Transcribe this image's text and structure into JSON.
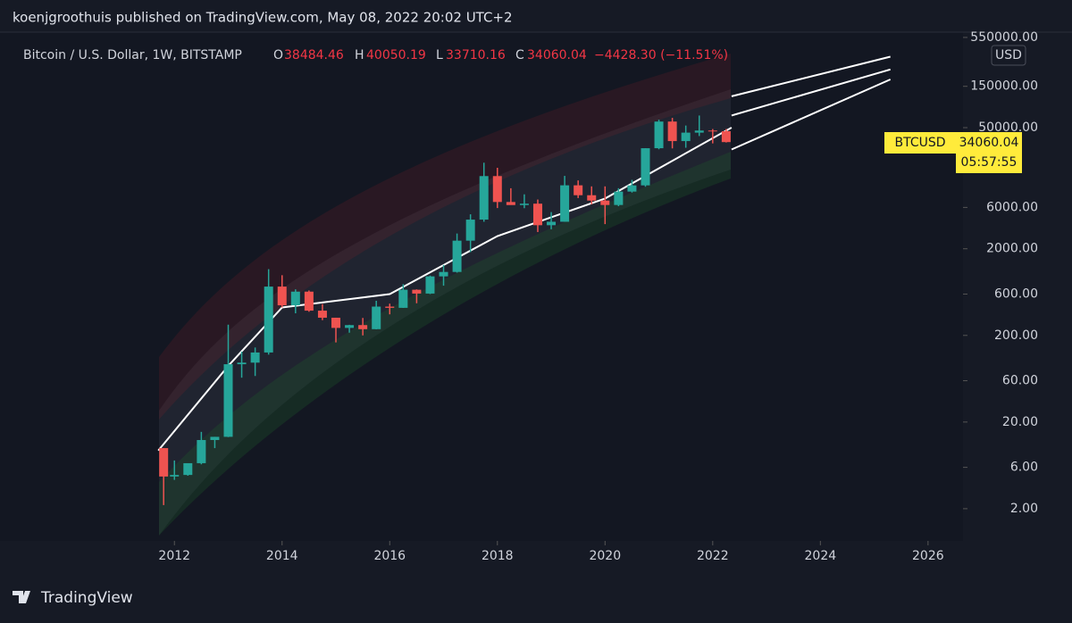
{
  "header": {
    "publisher": "koenjgroothuis published on TradingView.com, May 08, 2022 20:02 UTC+2"
  },
  "chart_data": {
    "type": "candlestick",
    "title": "Bitcoin / U.S. Dollar, 1W, BITSTAMP",
    "legend": {
      "open_label": "O",
      "open": 38484.46,
      "high_label": "H",
      "high": 40050.19,
      "low_label": "L",
      "low": 33710.16,
      "close_label": "C",
      "close": 34060.04,
      "change": "−4428.30 (−11.51%)"
    },
    "price_tag": {
      "symbol": "BTCUSD",
      "price": 34060.04,
      "countdown": "05:57:55"
    },
    "y_unit": "USD",
    "log_scale": true,
    "up_color": "#26a69a",
    "down_color": "#ef5350",
    "xlim": [
      2008.76,
      2026.6
    ],
    "xticks": [
      2012,
      2014,
      2016,
      2018,
      2020,
      2022,
      2024,
      2026
    ],
    "ylim": [
      0.87,
      730000
    ],
    "yticks": [
      {
        "value": 2,
        "label": "2.00"
      },
      {
        "value": 6,
        "label": "6.00"
      },
      {
        "value": 20,
        "label": "20.00"
      },
      {
        "value": 60,
        "label": "60.00"
      },
      {
        "value": 200,
        "label": "200.00"
      },
      {
        "value": 600,
        "label": "600.00"
      },
      {
        "value": 2000,
        "label": "2000.00"
      },
      {
        "value": 6000,
        "label": "6000.00"
      },
      {
        "value": 50000,
        "label": "50000.00"
      },
      {
        "value": 150000,
        "label": "150000.00"
      },
      {
        "value": 550000,
        "label": "550000.00"
      }
    ],
    "x": [
      2011.8,
      2012.0,
      2012.25,
      2012.5,
      2012.75,
      2013.0,
      2013.25,
      2013.5,
      2013.75,
      2014.0,
      2014.25,
      2014.5,
      2014.75,
      2015.0,
      2015.25,
      2015.5,
      2015.75,
      2016.0,
      2016.25,
      2016.5,
      2016.75,
      2017.0,
      2017.25,
      2017.5,
      2017.75,
      2018.0,
      2018.25,
      2018.5,
      2018.75,
      2019.0,
      2019.25,
      2019.5,
      2019.75,
      2020.0,
      2020.25,
      2020.5,
      2020.75,
      2021.0,
      2021.25,
      2021.5,
      2021.75,
      2022.0,
      2022.25
    ],
    "open": [
      10,
      4.7,
      4.9,
      6.7,
      12.4,
      13.5,
      93,
      97,
      127,
      732,
      445,
      640,
      386,
      320,
      244,
      263,
      236,
      430,
      416,
      673,
      608,
      960,
      1080,
      2480,
      4340,
      13800,
      6930,
      6390,
      6630,
      3740,
      4100,
      10800,
      8300,
      7200,
      6400,
      9140,
      10780,
      28950,
      58800,
      35000,
      43800,
      46300,
      45500
    ],
    "high": [
      10,
      7.2,
      6.6,
      15.4,
      13.5,
      266,
      130,
      145,
      1163,
      990,
      680,
      660,
      460,
      320,
      265,
      318,
      502,
      465,
      780,
      680,
      980,
      1300,
      3000,
      5000,
      19700,
      17200,
      9990,
      8500,
      7400,
      5300,
      13880,
      12300,
      10500,
      10500,
      10000,
      12480,
      29000,
      61800,
      64900,
      52900,
      69000,
      48200,
      48200
    ],
    "low": [
      2.2,
      4.3,
      4.8,
      6.5,
      10,
      13.4,
      65,
      68,
      120,
      420,
      360,
      375,
      300,
      166,
      215,
      200,
      235,
      350,
      415,
      470,
      600,
      750,
      1060,
      1830,
      4100,
      5900,
      6430,
      5880,
      3120,
      3360,
      4100,
      7700,
      6500,
      3850,
      6200,
      8900,
      10400,
      28150,
      28800,
      29300,
      40000,
      32900,
      33700
    ],
    "close": [
      4.7,
      4.9,
      6.7,
      12.4,
      13.5,
      93,
      97,
      127,
      732,
      445,
      640,
      386,
      320,
      244,
      263,
      236,
      430,
      416,
      673,
      608,
      960,
      1080,
      2480,
      4340,
      13800,
      6930,
      6390,
      6630,
      3740,
      4100,
      10800,
      8300,
      7200,
      6400,
      9140,
      10780,
      28950,
      58800,
      35000,
      43800,
      46300,
      45500,
      34060
    ],
    "lines": [
      {
        "color": "#ffffff",
        "x": [
          2011.7,
          2013,
          2014,
          2016,
          2018,
          2020,
          2022.35
        ],
        "values": [
          9.4,
          89,
          420,
          600,
          2800,
          7600,
          50000
        ]
      },
      {
        "color": "#ffffff",
        "x": [
          2022.35,
          2025.3
        ],
        "values": [
          115000,
          330000
        ]
      },
      {
        "color": "#ffffff",
        "x": [
          2022.35,
          2025.3
        ],
        "values": [
          69000,
          235000
        ]
      },
      {
        "color": "#ffffff",
        "x": [
          2022.35,
          2025.3
        ],
        "values": [
          28000,
          180000
        ]
      }
    ]
  }
}
